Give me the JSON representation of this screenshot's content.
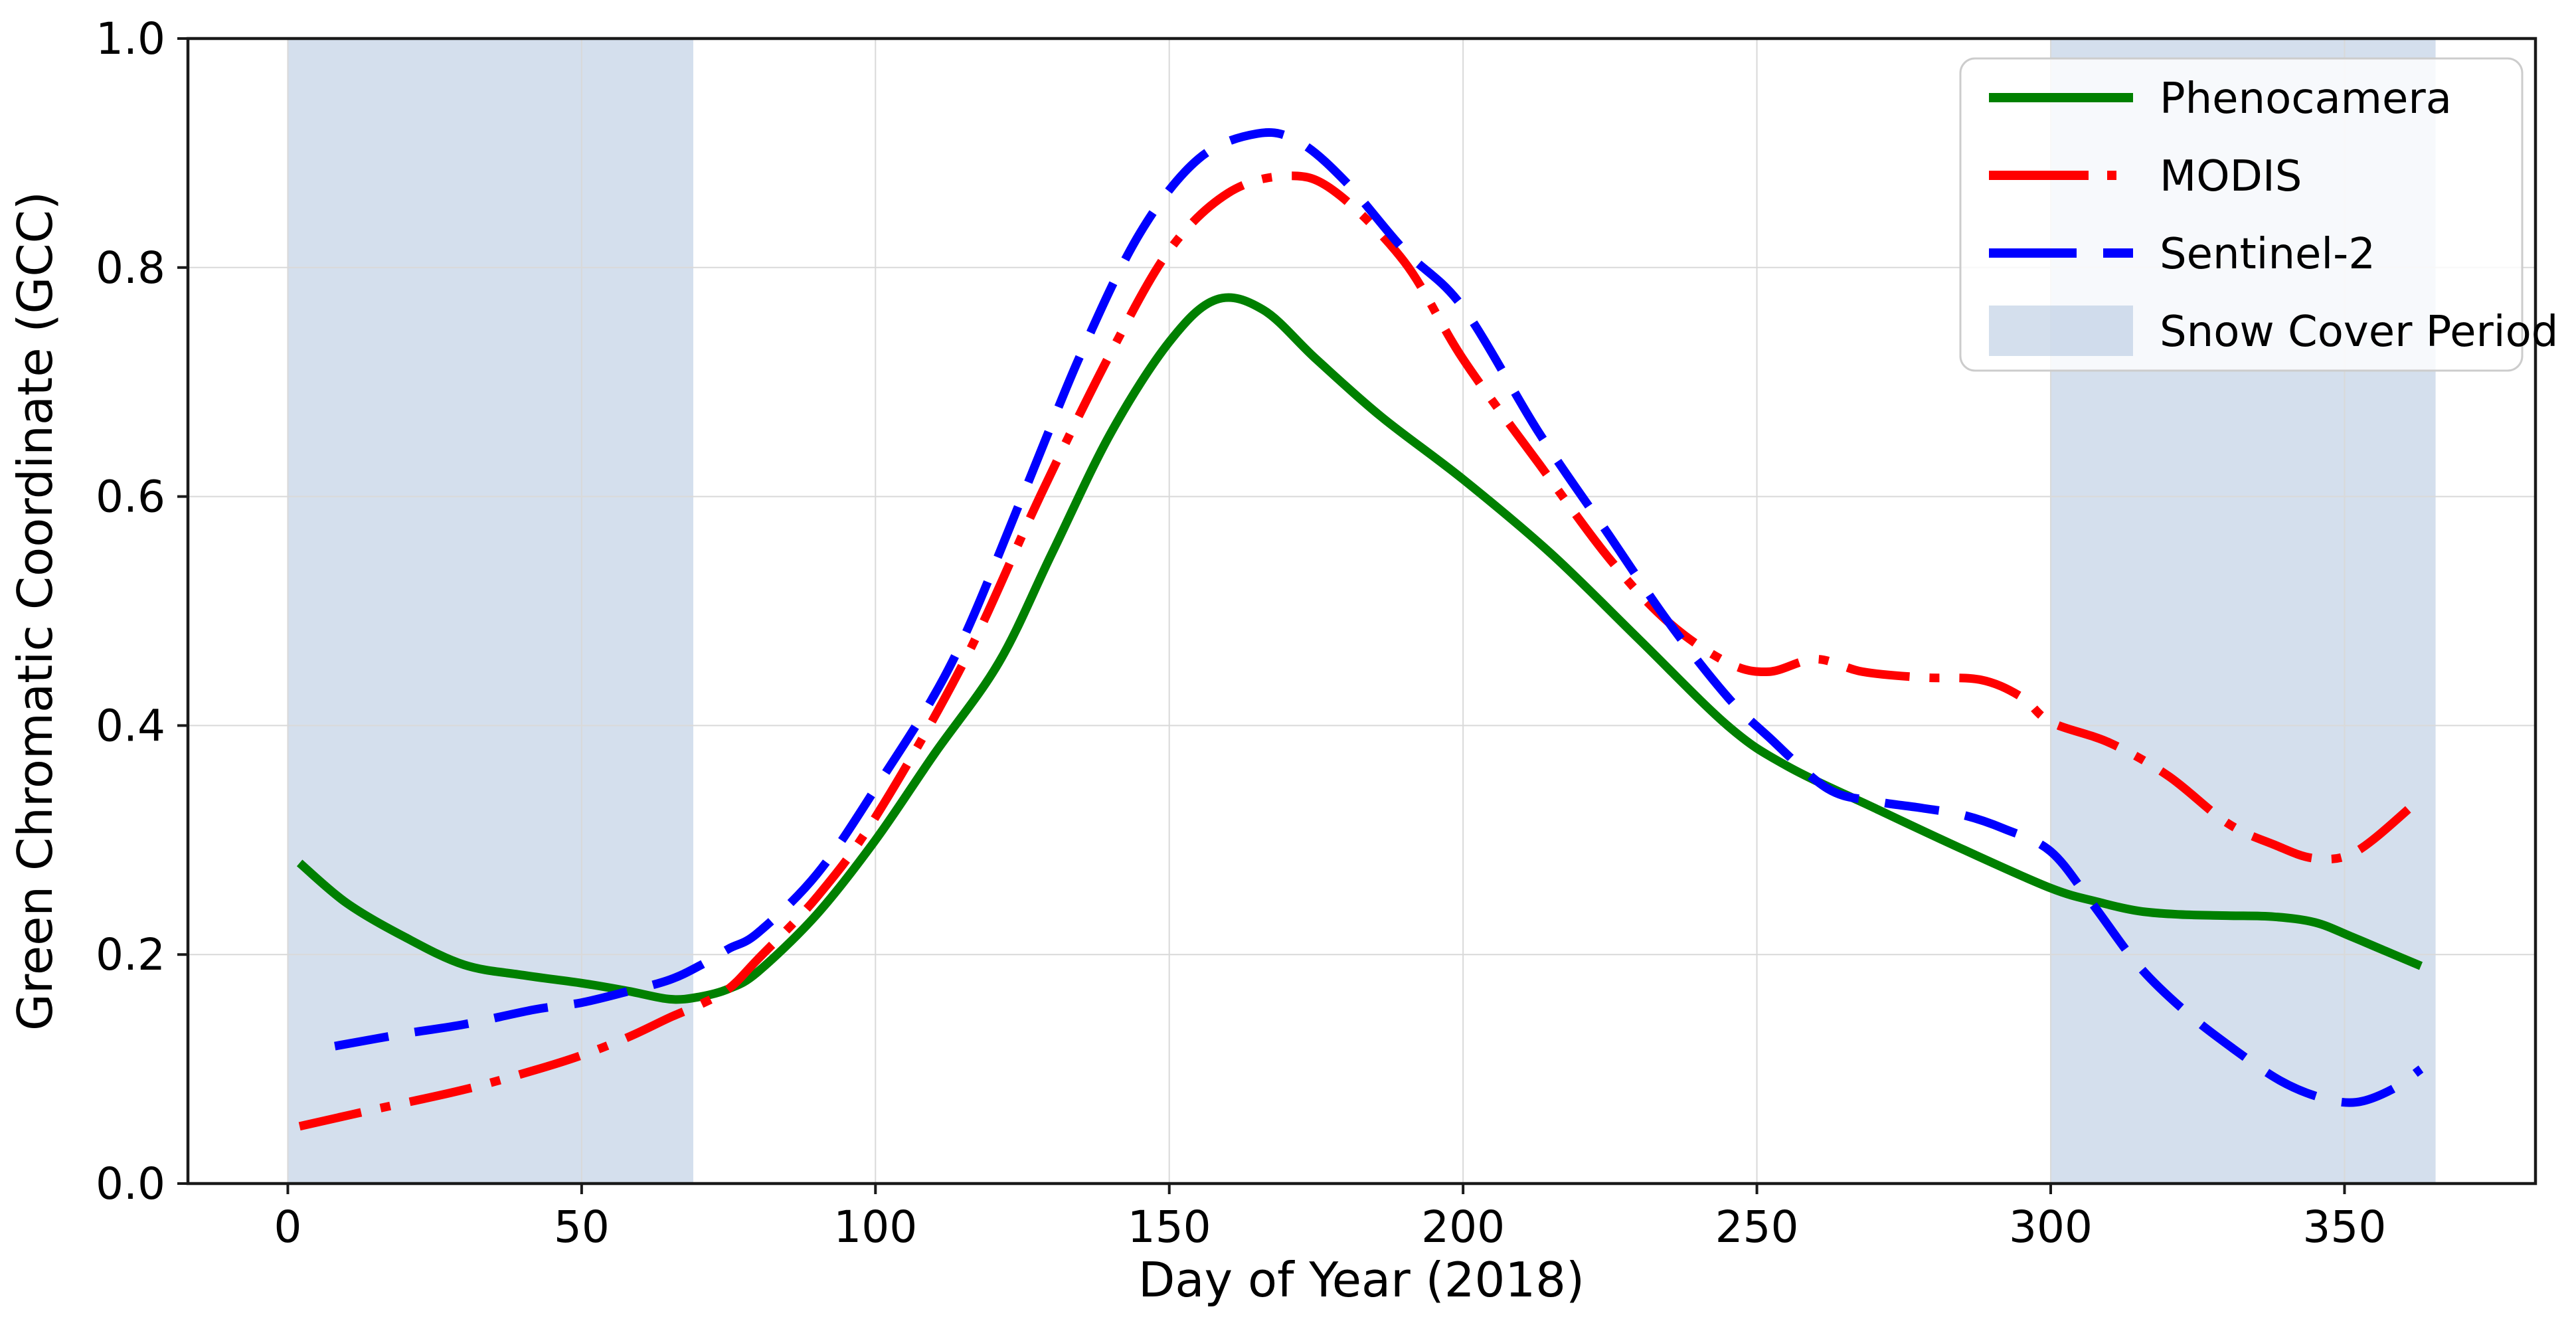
{
  "figure": {
    "background": "#ffffff",
    "plot_border_color": "#1a1a1a",
    "grid_color": "#d9d9d9"
  },
  "legend": {
    "position": "upper right",
    "items": [
      {
        "label": "Phenocamera",
        "type": "line",
        "style": "solid",
        "color": "#008000"
      },
      {
        "label": "MODIS",
        "type": "line",
        "style": "dashdot",
        "color": "#ff0000"
      },
      {
        "label": "Sentinel-2",
        "type": "line",
        "style": "dashed",
        "color": "#0000ff"
      },
      {
        "label": "Snow Cover Period",
        "type": "patch",
        "color": "rgba(176,196,222,0.55)"
      }
    ]
  },
  "chart_data": {
    "type": "line",
    "title": "",
    "xlabel": "Day of Year (2018)",
    "ylabel": "Green Chromatic Coordinate (GCC)",
    "xlim": [
      -17,
      382.5
    ],
    "ylim": [
      0,
      1
    ],
    "x_ticks": [
      0,
      50,
      100,
      150,
      200,
      250,
      300,
      350
    ],
    "x_tick_labels": [
      "0",
      "50",
      "100",
      "150",
      "200",
      "250",
      "300",
      "350"
    ],
    "y_ticks": [
      0.0,
      0.2,
      0.4,
      0.6,
      0.8,
      1.0
    ],
    "y_tick_labels": [
      "0.0",
      "0.2",
      "0.4",
      "0.6",
      "0.8",
      "1.0"
    ],
    "grid": true,
    "legend_position": "upper right",
    "snow_cover_periods": [
      {
        "start_day": 0,
        "end_day": 69
      },
      {
        "start_day": 300,
        "end_day": 365.5
      }
    ],
    "snow_cover_color": "rgba(176,196,222,0.55)",
    "series": [
      {
        "name": "Phenocamera",
        "color": "#008000",
        "style": "solid",
        "line_width": 13,
        "x": [
          2,
          10,
          20,
          30,
          40,
          50,
          58,
          65,
          70,
          75,
          80,
          90,
          100,
          110,
          121,
          130,
          140,
          150,
          158,
          166,
          175,
          186,
          200,
          215,
          230,
          245,
          255,
          270,
          285,
          300,
          308,
          315,
          322,
          330,
          338,
          345,
          351,
          357,
          363
        ],
        "y": [
          0.28,
          0.245,
          0.215,
          0.191,
          0.182,
          0.175,
          0.168,
          0.161,
          0.163,
          0.17,
          0.185,
          0.235,
          0.3,
          0.375,
          0.455,
          0.55,
          0.655,
          0.735,
          0.772,
          0.763,
          0.72,
          0.67,
          0.615,
          0.55,
          0.475,
          0.4,
          0.365,
          0.328,
          0.292,
          0.258,
          0.246,
          0.238,
          0.235,
          0.234,
          0.233,
          0.228,
          0.216,
          0.203,
          0.19
        ]
      },
      {
        "name": "MODIS",
        "color": "#ff0000",
        "style": "dashdot",
        "line_width": 13,
        "x": [
          2,
          15,
          30,
          42,
          50,
          58,
          65,
          70,
          75,
          80,
          90,
          100,
          115,
          128,
          140,
          150,
          160,
          170,
          178,
          190,
          200,
          213,
          225,
          235,
          245,
          252,
          260,
          268,
          278,
          288,
          295,
          300,
          310,
          320,
          330,
          338,
          345,
          352,
          362
        ],
        "y": [
          0.05,
          0.065,
          0.082,
          0.099,
          0.112,
          0.128,
          0.145,
          0.156,
          0.17,
          0.196,
          0.25,
          0.32,
          0.455,
          0.6,
          0.725,
          0.815,
          0.865,
          0.88,
          0.867,
          0.805,
          0.72,
          0.628,
          0.545,
          0.49,
          0.455,
          0.447,
          0.458,
          0.447,
          0.442,
          0.44,
          0.425,
          0.403,
          0.385,
          0.356,
          0.315,
          0.296,
          0.284,
          0.29,
          0.332
        ]
      },
      {
        "name": "Sentinel-2",
        "color": "#0000ff",
        "style": "dashed",
        "line_width": 13,
        "x": [
          8,
          20,
          30,
          42,
          50,
          58,
          65,
          70,
          75,
          80,
          90,
          100,
          113,
          125,
          135,
          145,
          155,
          165,
          172,
          180,
          190,
          200,
          213,
          225,
          235,
          245,
          252,
          262,
          270,
          278,
          285,
          292,
          300,
          307,
          315,
          323,
          331,
          339,
          346,
          352,
          358,
          363
        ],
        "y": [
          0.12,
          0.131,
          0.139,
          0.152,
          0.158,
          0.168,
          0.178,
          0.19,
          0.205,
          0.219,
          0.27,
          0.345,
          0.455,
          0.6,
          0.725,
          0.83,
          0.895,
          0.917,
          0.91,
          0.875,
          0.815,
          0.765,
          0.655,
          0.565,
          0.49,
          0.425,
          0.39,
          0.345,
          0.334,
          0.328,
          0.322,
          0.31,
          0.29,
          0.245,
          0.19,
          0.15,
          0.118,
          0.09,
          0.075,
          0.071,
          0.082,
          0.1
        ]
      }
    ]
  }
}
